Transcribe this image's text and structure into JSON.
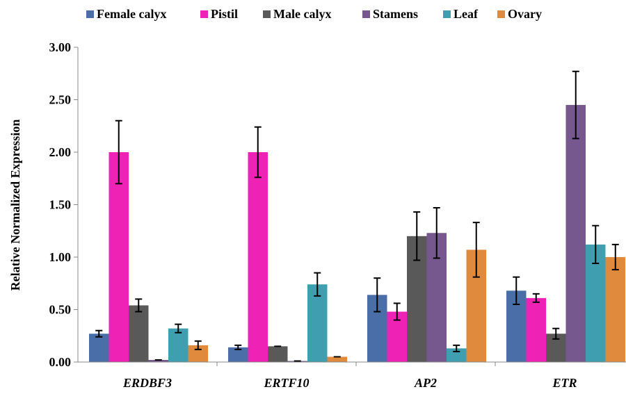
{
  "chart_data": {
    "type": "bar",
    "title": "",
    "xlabel": "",
    "ylabel": "Relative Normalized Expression",
    "ylim": [
      0,
      3
    ],
    "yticks": [
      "0.00",
      "0.50",
      "1.00",
      "1.50",
      "2.00",
      "2.50",
      "3.00"
    ],
    "legend_position": "top",
    "grid": false,
    "categories": [
      "ERDBF3",
      "ERTF10",
      "AP2",
      "ETR"
    ],
    "series": [
      {
        "name": "Female calyx",
        "color": "#4a6fa8",
        "values": [
          0.27,
          0.14,
          0.64,
          0.68
        ],
        "errors": [
          0.03,
          0.02,
          0.16,
          0.13
        ]
      },
      {
        "name": "Pistil",
        "color": "#ee22b4",
        "values": [
          2.0,
          2.0,
          0.48,
          0.61
        ],
        "errors": [
          0.3,
          0.24,
          0.08,
          0.04
        ]
      },
      {
        "name": "Male calyx",
        "color": "#595959",
        "values": [
          0.54,
          0.15,
          1.2,
          0.27
        ],
        "errors": [
          0.06,
          0.0,
          0.23,
          0.05
        ]
      },
      {
        "name": "Stamens",
        "color": "#76588e",
        "values": [
          0.02,
          0.01,
          1.23,
          2.45
        ],
        "errors": [
          0.0,
          0.0,
          0.24,
          0.32
        ]
      },
      {
        "name": "Leaf",
        "color": "#3f9fb0",
        "values": [
          0.32,
          0.74,
          0.13,
          1.12
        ],
        "errors": [
          0.04,
          0.11,
          0.03,
          0.18
        ]
      },
      {
        "name": "Ovary",
        "color": "#e08a3e",
        "values": [
          0.16,
          0.05,
          1.07,
          1.0
        ],
        "errors": [
          0.04,
          0.0,
          0.26,
          0.12
        ]
      }
    ]
  }
}
